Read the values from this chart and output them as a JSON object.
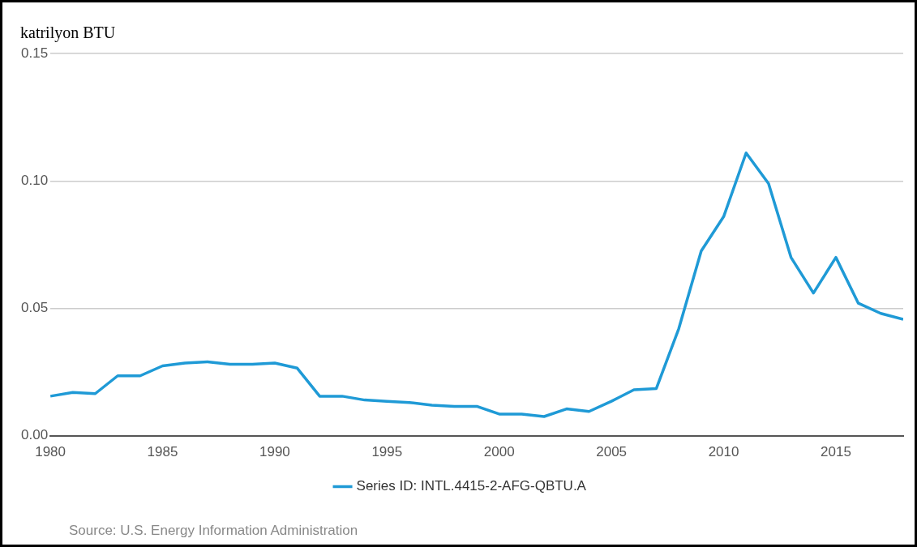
{
  "chart_data": {
    "type": "line",
    "ylabel": "katrilyon BTU",
    "annotations": [
      "Source: U.S. Energy Information Administration"
    ],
    "x": [
      1980,
      1981,
      1982,
      1983,
      1984,
      1985,
      1986,
      1987,
      1988,
      1989,
      1990,
      1991,
      1992,
      1993,
      1994,
      1995,
      1996,
      1997,
      1998,
      1999,
      2000,
      2001,
      2002,
      2003,
      2004,
      2005,
      2006,
      2007,
      2008,
      2009,
      2010,
      2011,
      2012,
      2013,
      2014,
      2015,
      2016,
      2017,
      2018
    ],
    "series": [
      {
        "name": "Series ID: INTL.4415-2-AFG-QBTU.A",
        "color": "#1f9ad6",
        "values": [
          0.0155,
          0.017,
          0.0165,
          0.0235,
          0.0235,
          0.0274,
          0.0285,
          0.029,
          0.028,
          0.028,
          0.0285,
          0.0265,
          0.0155,
          0.0155,
          0.014,
          0.0135,
          0.013,
          0.012,
          0.0115,
          0.0115,
          0.0085,
          0.0085,
          0.0075,
          0.0105,
          0.0095,
          0.0135,
          0.018,
          0.0185,
          0.042,
          0.0725,
          0.086,
          0.111,
          0.099,
          0.07,
          0.056,
          0.07,
          0.052,
          0.048,
          0.0457
        ]
      }
    ],
    "xlim": [
      1980,
      2018
    ],
    "xticks": [
      1980,
      1985,
      1990,
      1995,
      2000,
      2005,
      2010,
      2015
    ],
    "ylim": [
      0,
      0.15
    ],
    "yticks": [
      {
        "value": 0,
        "label": "0.00"
      },
      {
        "value": 0.05,
        "label": "0.05"
      },
      {
        "value": 0.1,
        "label": "0.10"
      },
      {
        "value": 0.15,
        "label": "0.15"
      }
    ],
    "grid": "y",
    "legend": "bottom",
    "marker": "none",
    "line_style": "solid"
  }
}
